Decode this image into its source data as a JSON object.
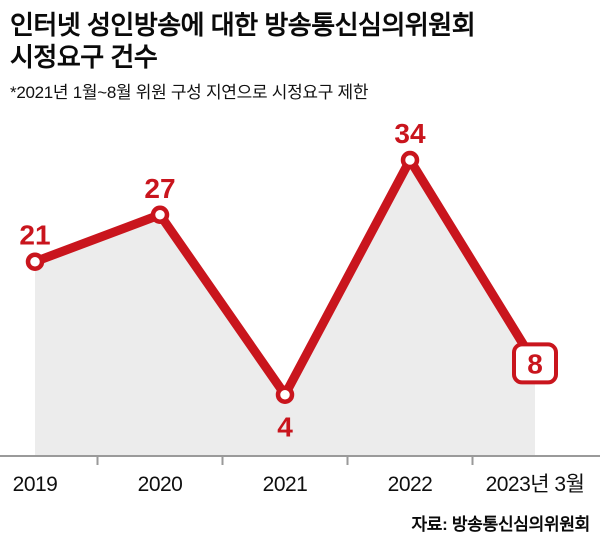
{
  "header": {
    "title_line1": "인터넷 성인방송에 대한 방송통신심의위원회",
    "title_line2": "시정요구 건수",
    "subtitle": "*2021년 1월~8월 위원 구성 지연으로 시정요구 제한"
  },
  "chart_data": {
    "type": "line",
    "title": "인터넷 성인방송에 대한 방송통신심의위원회 시정요구 건수",
    "categories": [
      "2019",
      "2020",
      "2021",
      "2022",
      "2023년 3월"
    ],
    "values": [
      21,
      27,
      4,
      34,
      8
    ],
    "xlabel": "",
    "ylabel": "시정요구 건수",
    "ylim": [
      0,
      34
    ],
    "grid": false,
    "legend": "none",
    "line_color": "#c9151d",
    "fill_color": "#ececec",
    "axis_color": "#9a9a9a",
    "label_color": "#0f0f0f",
    "highlight_last": true
  },
  "footer": {
    "source": "자료: 방송통신심의위원회"
  }
}
